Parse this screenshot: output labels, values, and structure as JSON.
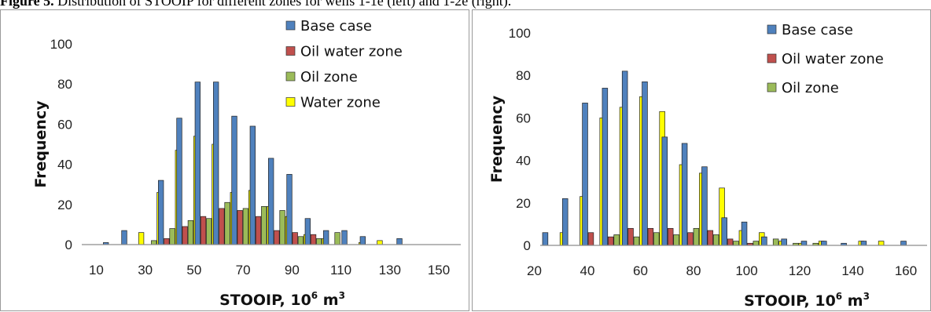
{
  "figure": {
    "caption_label": "Figure 5.",
    "caption_text": " Distribution of STOOIP for different zones for wells 1-1e (left) and 1-2e (right)."
  },
  "colors": {
    "base": "#4f81bd",
    "oil_water": "#c0504d",
    "oil": "#9bbb59",
    "water": "#ffff00"
  },
  "chart_data": [
    {
      "type": "bar",
      "xlabel": "STOOIP, 10",
      "xlabel_sup": "6",
      "xlabel_unit": " m",
      "xlabel_unit_sup": "3",
      "ylabel": "Frequency",
      "ylim": [
        0,
        100
      ],
      "yticks": [
        0,
        20,
        40,
        60,
        80,
        100
      ],
      "xlim": [
        6,
        159
      ],
      "xticks": [
        10,
        30,
        50,
        70,
        90,
        110,
        130,
        150
      ],
      "bin_width": 7.5,
      "grid": false,
      "legend_position": "top-right",
      "categories": [
        17.5,
        25,
        32.5,
        40,
        47.5,
        55,
        62.5,
        70,
        77.5,
        85,
        92.5,
        100,
        107.5,
        115,
        122.5,
        130,
        137.5,
        145,
        152.5
      ],
      "series": [
        {
          "name": "Base case",
          "color": "#4f81bd",
          "values": [
            1,
            7,
            0,
            32,
            63,
            81,
            81,
            64,
            59,
            43,
            35,
            13,
            7,
            7,
            4,
            0,
            3,
            0,
            0
          ]
        },
        {
          "name": "Oil water zone",
          "color": "#c0504d",
          "values": [
            0,
            0,
            0,
            3,
            9,
            14,
            18,
            17,
            14,
            7,
            6,
            5,
            0,
            0,
            0,
            0,
            0,
            0,
            0
          ]
        },
        {
          "name": "Oil zone",
          "color": "#9bbb59",
          "values": [
            0,
            0,
            2,
            8,
            12,
            13,
            21,
            18,
            19,
            17,
            4,
            3,
            6,
            0,
            0,
            0,
            0,
            0,
            0
          ]
        },
        {
          "name": "Water zone",
          "color": "#ffff00",
          "values": [
            0,
            6,
            26,
            47,
            54,
            50,
            26,
            27,
            19,
            14,
            5,
            3,
            0,
            1,
            2,
            0,
            0,
            0,
            0
          ]
        }
      ]
    },
    {
      "type": "bar",
      "xlabel": "STOOIP, 10",
      "xlabel_sup": "6",
      "xlabel_unit": " m",
      "xlabel_unit_sup": "3",
      "ylabel": "Frequency",
      "ylim": [
        0,
        100
      ],
      "yticks": [
        0,
        20,
        40,
        60,
        80,
        100
      ],
      "xlim": [
        24,
        168
      ],
      "xticks": [
        20,
        40,
        60,
        80,
        100,
        120,
        140,
        160
      ],
      "bin_width": 7.5,
      "grid": false,
      "legend_position": "top-right",
      "categories": [
        27.5,
        35,
        42.5,
        50,
        57.5,
        65,
        72.5,
        80,
        87.5,
        95,
        102.5,
        110,
        117.5,
        125,
        132.5,
        140,
        147.5,
        155,
        162.5
      ],
      "series": [
        {
          "name": "Base case",
          "color": "#4f81bd",
          "values": [
            6,
            22,
            67,
            74,
            82,
            77,
            51,
            48,
            37,
            13,
            11,
            4,
            3,
            2,
            2,
            1,
            2,
            0,
            2
          ]
        },
        {
          "name": "Oil water zone",
          "color": "#c0504d",
          "values": [
            0,
            0,
            6,
            4,
            8,
            8,
            8,
            6,
            7,
            3,
            1,
            0,
            0,
            0,
            0,
            0,
            0,
            0,
            0
          ]
        },
        {
          "name": "Oil zone",
          "color": "#9bbb59",
          "values": [
            0,
            0,
            0,
            5,
            4,
            6,
            5,
            8,
            5,
            2,
            2,
            3,
            1,
            1,
            0,
            0,
            0,
            0,
            0
          ]
        },
        {
          "name": "Water zone",
          "color": "#ffff00",
          "values": [
            6,
            23,
            60,
            65,
            70,
            63,
            38,
            34,
            27,
            7,
            6,
            2,
            1,
            2,
            0,
            2,
            2,
            0,
            0
          ]
        }
      ],
      "legend_series": [
        0,
        1,
        2
      ]
    }
  ]
}
